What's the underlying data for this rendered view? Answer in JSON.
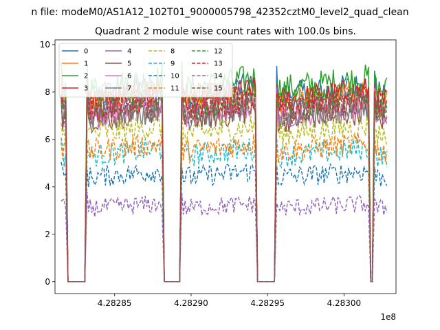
{
  "chart_data": {
    "type": "line",
    "suptitle": "n file: modeM0/AS1A12_102T01_9000005798_42352cztM0_level2_quad_clean",
    "title": "Quadrant 2 module wise count rates with 100.0s bins.",
    "xlabel": "",
    "ylabel": "",
    "x_offset_label": "1e8",
    "xlim": [
      428281100,
      428303400
    ],
    "ylim": [
      -0.5,
      10.2
    ],
    "xticks": [
      428285000,
      428290000,
      428295000,
      428300000
    ],
    "xtick_labels": [
      "4.28285",
      "4.28290",
      "4.28295",
      "4.28300"
    ],
    "yticks": [
      0,
      2,
      4,
      6,
      8,
      10
    ],
    "ytick_labels": [
      "0",
      "2",
      "4",
      "6",
      "8",
      "10"
    ],
    "legend_position": "top-left",
    "gti_segments": [
      [
        428281500,
        428281800
      ],
      [
        428283200,
        428288100
      ],
      [
        428289400,
        428294200
      ],
      [
        428295600,
        428301600
      ],
      [
        428302000,
        428302800
      ]
    ],
    "bin_seconds": 100,
    "series": [
      {
        "name": "0",
        "level": 7.8,
        "color": "#1f77b4",
        "dash": "solid"
      },
      {
        "name": "1",
        "level": 7.5,
        "color": "#ff7f0e",
        "dash": "solid"
      },
      {
        "name": "2",
        "level": 8.1,
        "color": "#2ca02c",
        "dash": "solid"
      },
      {
        "name": "3",
        "level": 7.6,
        "color": "#d62728",
        "dash": "solid"
      },
      {
        "name": "4",
        "level": 7.2,
        "color": "#9467bd",
        "dash": "solid"
      },
      {
        "name": "5",
        "level": 6.8,
        "color": "#8c564b",
        "dash": "solid"
      },
      {
        "name": "6",
        "level": 7.0,
        "color": "#e377c2",
        "dash": "solid"
      },
      {
        "name": "7",
        "level": 6.9,
        "color": "#7f7f7f",
        "dash": "solid"
      },
      {
        "name": "8",
        "level": 6.2,
        "color": "#bcbd22",
        "dash": "dashed"
      },
      {
        "name": "9",
        "level": 5.3,
        "color": "#17becf",
        "dash": "dashed"
      },
      {
        "name": "10",
        "level": 4.4,
        "color": "#1f77b4",
        "dash": "dashed"
      },
      {
        "name": "11",
        "level": 5.5,
        "color": "#ff7f0e",
        "dash": "dashed"
      },
      {
        "name": "12",
        "level": 7.4,
        "color": "#2ca02c",
        "dash": "dashed"
      },
      {
        "name": "13",
        "level": 7.3,
        "color": "#d62728",
        "dash": "dashed"
      },
      {
        "name": "14",
        "level": 3.1,
        "color": "#9467bd",
        "dash": "dashed"
      },
      {
        "name": "15",
        "level": 7.1,
        "color": "#8c564b",
        "dash": "dashed"
      }
    ]
  }
}
